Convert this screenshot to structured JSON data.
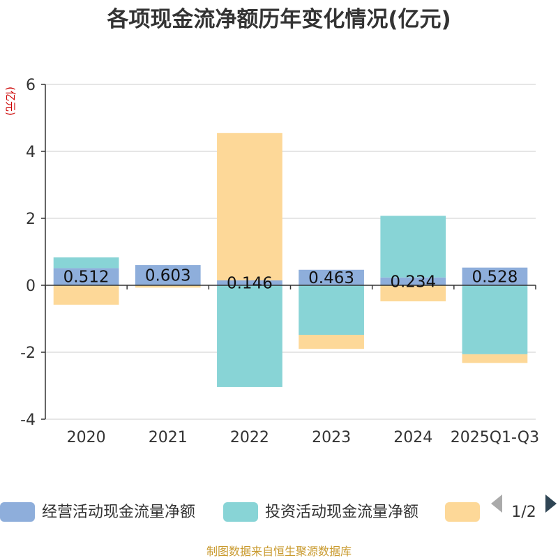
{
  "chart_data": {
    "type": "bar",
    "stacked": true,
    "title": "各项现金流净额历年变化情况(亿元)",
    "ylabel": "(亿元)",
    "xlabel": "",
    "categories": [
      "2020",
      "2021",
      "2022",
      "2023",
      "2024",
      "2025Q1-Q3"
    ],
    "ylim": [
      -4,
      6
    ],
    "yticks": [
      6,
      4,
      2,
      0,
      -2,
      -4
    ],
    "grid": true,
    "series": [
      {
        "name": "经营活动现金流量净额",
        "color": "#8eaedb",
        "values": [
          0.512,
          0.603,
          0.146,
          0.463,
          0.234,
          0.528
        ],
        "data_labels": [
          "0.512",
          "0.603",
          "0.146",
          "0.463",
          "0.234",
          "0.528"
        ]
      },
      {
        "name": "投资活动现金流量净额",
        "color": "#88d4d6",
        "values": [
          0.32,
          0.0,
          -3.04,
          -1.48,
          1.84,
          -2.06
        ]
      },
      {
        "name": "",
        "color": "#fdd898",
        "values": [
          -0.58,
          -0.07,
          4.4,
          -0.42,
          -0.48,
          -0.26
        ]
      }
    ],
    "legend": {
      "placement": "bottom",
      "page": "1/2"
    },
    "footer": "制图数据来自恒生聚源数据库"
  }
}
